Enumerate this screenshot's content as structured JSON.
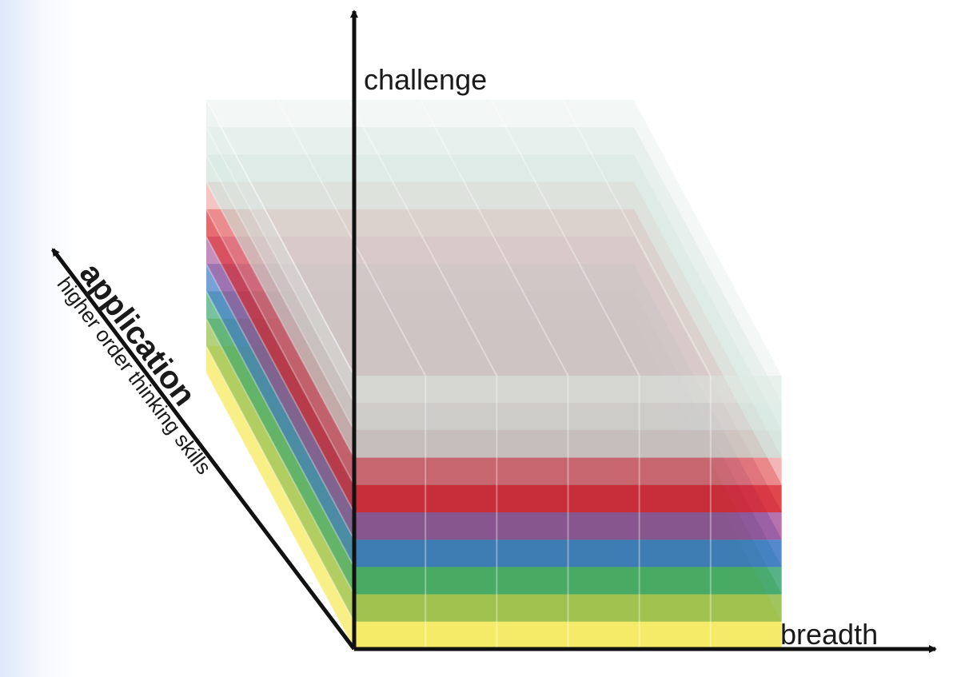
{
  "axes": {
    "vertical": {
      "label": "challenge"
    },
    "horizontal": {
      "label": "breadth"
    },
    "diagonal": {
      "label": "application",
      "sublabel": "higher order thinking skills"
    }
  },
  "layers": [
    {
      "color": "#f2e32e",
      "opacity": 0.72
    },
    {
      "color": "#8cb83a",
      "opacity": 0.82
    },
    {
      "color": "#1f9a5e",
      "opacity": 0.75
    },
    {
      "color": "#2f6fc2",
      "opacity": 0.82
    },
    {
      "color": "#9a3c8c",
      "opacity": 0.72
    },
    {
      "color": "#d91f26",
      "opacity": 0.82
    },
    {
      "color": "#e87a7a",
      "opacity": 0.55
    },
    {
      "color": "#c9dfd6",
      "opacity": 0.75
    },
    {
      "color": "#d3e6df",
      "opacity": 0.7
    },
    {
      "color": "#dde9e4",
      "opacity": 0.65
    }
  ],
  "colors": {
    "frame_background": "#e6eefb",
    "axis_stroke": "#111111",
    "grid_stroke": "#ffffff"
  }
}
